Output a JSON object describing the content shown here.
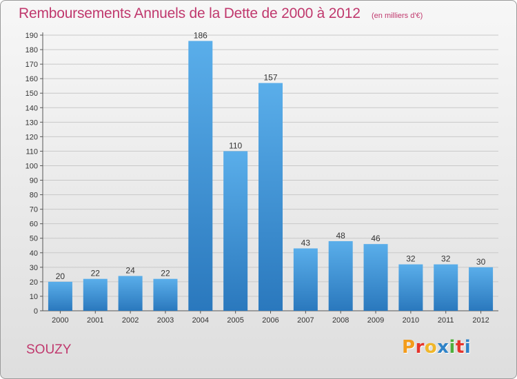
{
  "header": {
    "title": "Remboursements Annuels de la Dette de 2000 à 2012",
    "unit": "(en milliers d'€)"
  },
  "footer": {
    "town": "SOUZY",
    "logo_letters": [
      "P",
      "r",
      "o",
      "x",
      "i",
      "t",
      "i"
    ]
  },
  "colors": {
    "title": "#c0386d",
    "bar_top": "#5aaeea",
    "bar_bottom": "#2a78bd",
    "grid": "#c8c8c8",
    "logo": [
      "#f39c1b",
      "#e5352c",
      "#f0b62a",
      "#2f83c8",
      "#4fae3c",
      "#e5352c",
      "#2f83c8"
    ]
  },
  "chart_data": {
    "type": "bar",
    "title": "Remboursements Annuels de la Dette de 2000 à 2012",
    "xlabel": "",
    "ylabel": "",
    "categories": [
      "2000",
      "2001",
      "2002",
      "2003",
      "2004",
      "2005",
      "2006",
      "2007",
      "2008",
      "2009",
      "2010",
      "2011",
      "2012"
    ],
    "values": [
      20,
      22,
      24,
      22,
      186,
      110,
      157,
      43,
      48,
      46,
      32,
      32,
      30
    ],
    "ylim": [
      0,
      190
    ],
    "yticks": [
      0,
      10,
      20,
      30,
      40,
      50,
      60,
      70,
      80,
      90,
      100,
      110,
      120,
      130,
      140,
      150,
      160,
      170,
      180,
      190
    ],
    "grid": true,
    "legend": "none"
  }
}
